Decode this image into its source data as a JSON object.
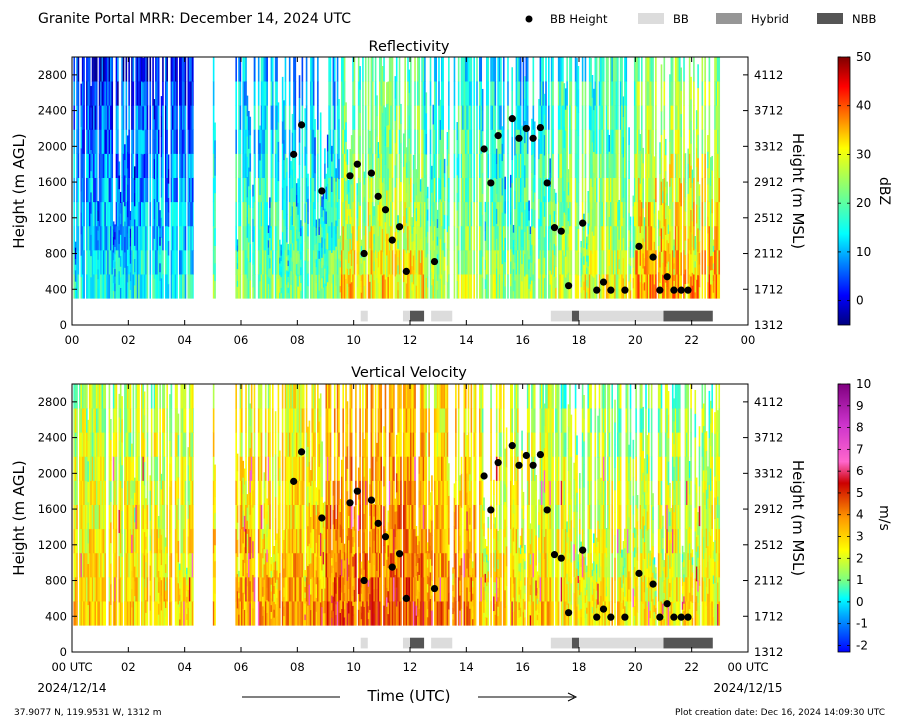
{
  "header": {
    "title": "Granite Portal MRR:  December 14, 2024 UTC",
    "legend": [
      {
        "label": "BB Height",
        "kind": "dot",
        "color": "#000000"
      },
      {
        "label": "BB",
        "kind": "box",
        "color": "#dcdcdc"
      },
      {
        "label": "Hybrid",
        "kind": "box",
        "color": "#969696"
      },
      {
        "label": "NBB",
        "kind": "box",
        "color": "#555555"
      }
    ]
  },
  "footer": {
    "xlabel": "Time (UTC)",
    "start_date": "2024/12/14",
    "end_date": "2024/12/15",
    "location": "37.9077 N, 119.9531 W, 1312 m",
    "creation": "Plot creation date: Dec 16, 2024 14:09:30 UTC"
  },
  "chart_data": [
    {
      "type": "heatmap",
      "title": "Reflectivity",
      "ylabel": "Height (m AGL)",
      "y2label": "Height (m MSL)",
      "colorbar_label": "dBZ",
      "colorbar_range": [
        -5,
        50
      ],
      "colorbar_ticks": [
        "0",
        "10",
        "20",
        "30",
        "40",
        "50"
      ],
      "colormap": "jet",
      "xlim": [
        0,
        24
      ],
      "ylim": [
        0,
        3000
      ],
      "x_ticks": [
        "00",
        "02",
        "04",
        "06",
        "08",
        "10",
        "12",
        "14",
        "16",
        "18",
        "20",
        "22",
        "00"
      ],
      "y_ticks": [
        "0",
        "400",
        "800",
        "1200",
        "1600",
        "2000",
        "2400",
        "2800"
      ],
      "y2_ticks": [
        "1312",
        "1712",
        "2112",
        "2512",
        "2912",
        "3312",
        "3712",
        "4112"
      ],
      "series": [
        {
          "name": "BB Height"
        }
      ],
      "grid": false
    },
    {
      "type": "heatmap",
      "title": "Vertical Velocity",
      "ylabel": "Height (m AGL)",
      "y2label": "Height (m MSL)",
      "colorbar_label": "m/s",
      "colorbar_range": [
        -2.3,
        10
      ],
      "colorbar_ticks": [
        "-2",
        "-1",
        "0",
        "1",
        "2",
        "3",
        "4",
        "5",
        "6",
        "7",
        "8",
        "9",
        "10"
      ],
      "colormap": "velocity",
      "xlim": [
        0,
        24
      ],
      "ylim": [
        0,
        3000
      ],
      "x_ticks": [
        "00 UTC",
        "02",
        "04",
        "06",
        "08",
        "10",
        "12",
        "14",
        "16",
        "18",
        "20",
        "22",
        "00 UTC"
      ],
      "y_ticks": [
        "0",
        "400",
        "800",
        "1200",
        "1600",
        "2000",
        "2400",
        "2800"
      ],
      "y2_ticks": [
        "1312",
        "1712",
        "2112",
        "2512",
        "2912",
        "3312",
        "3712",
        "4112"
      ],
      "series": [
        {
          "name": "BB Height"
        }
      ],
      "grid": false
    }
  ],
  "bb_height": {
    "x": [
      7.87,
      8.15,
      8.87,
      9.87,
      10.13,
      10.37,
      10.63,
      10.87,
      11.13,
      11.37,
      11.63,
      11.87,
      12.87,
      14.63,
      14.87,
      15.13,
      15.63,
      15.87,
      16.13,
      16.37,
      16.63,
      16.87,
      17.13,
      17.37,
      17.63,
      18.13,
      18.63,
      18.87,
      19.13,
      19.63,
      20.13,
      20.63,
      20.87,
      21.13,
      21.37,
      21.63,
      21.87
    ],
    "y": [
      1910,
      2240,
      1500,
      1670,
      1800,
      800,
      1700,
      1440,
      1290,
      950,
      1100,
      600,
      710,
      1970,
      1590,
      2120,
      2310,
      2090,
      2200,
      2090,
      2210,
      1590,
      1090,
      1050,
      440,
      1140,
      390,
      480,
      390,
      390,
      880,
      760,
      390,
      540,
      390,
      390,
      390
    ]
  },
  "bb_type_spans": [
    {
      "type": "BB",
      "start": 10.25,
      "end": 10.5
    },
    {
      "type": "BB",
      "start": 11.75,
      "end": 12.0
    },
    {
      "type": "NBB",
      "start": 12.0,
      "end": 12.5
    },
    {
      "type": "BB",
      "start": 12.75,
      "end": 13.5
    },
    {
      "type": "BB",
      "start": 17.0,
      "end": 17.75
    },
    {
      "type": "NBB",
      "start": 17.75,
      "end": 18.0
    },
    {
      "type": "BB",
      "start": 18.0,
      "end": 21.0
    },
    {
      "type": "NBB",
      "start": 21.0,
      "end": 22.75
    }
  ],
  "colors": {
    "BB": "#dcdcdc",
    "Hybrid": "#969696",
    "NBB": "#555555",
    "bb_dot": "#000000"
  }
}
